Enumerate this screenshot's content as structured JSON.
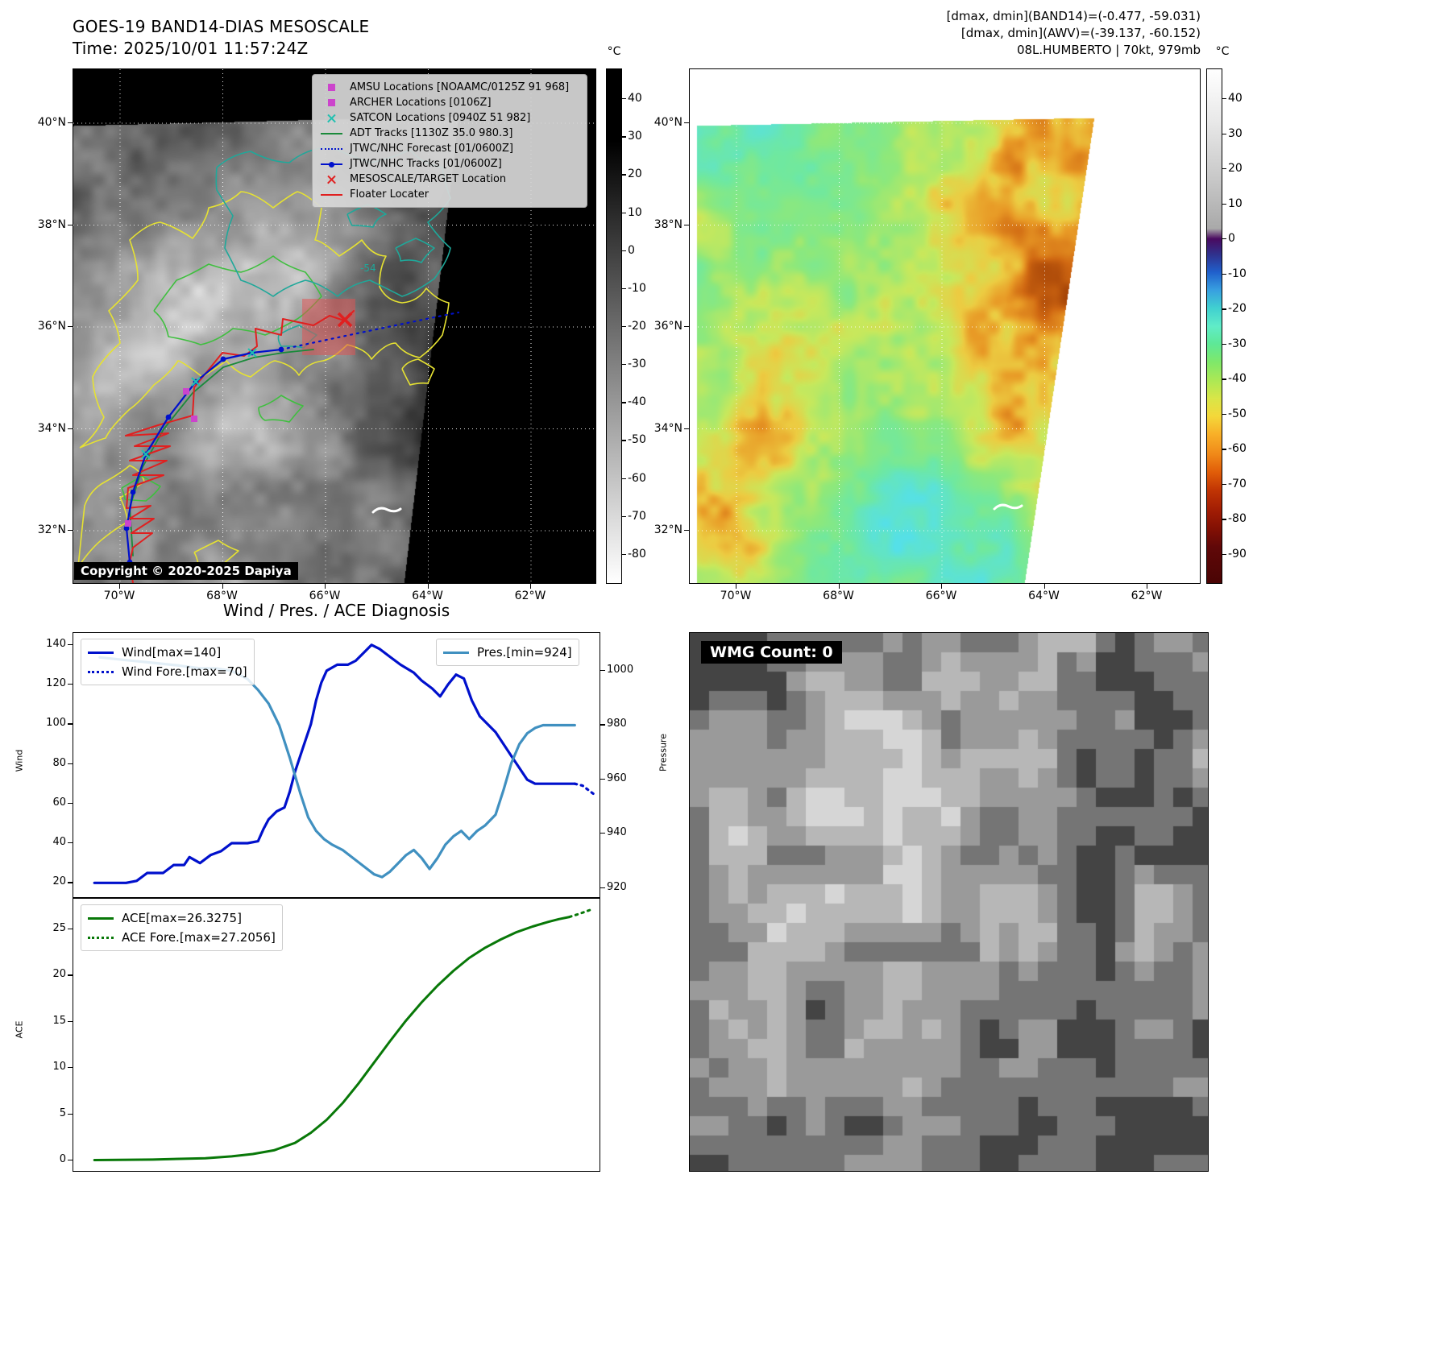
{
  "colors": {
    "wind": "#0010cc",
    "pressure": "#4090c0",
    "ace": "#087808",
    "track_red": "#e02020",
    "track_blue": "#0010cc",
    "track_green": "#1a8a3a",
    "contour_yellow": "#e6e232",
    "contour_green": "#3fbf3f",
    "contour_teal": "#1fa89a",
    "marker_magenta": "#cc44cc"
  },
  "band14_panel": {
    "title_line1": "GOES-19 BAND14-DIAS MESOSCALE",
    "title_line2": "Time: 2025/10/01 11:57:24Z",
    "copyright": "Copyright © 2020-2025 Dapiya",
    "contour_label": "-54",
    "colorbar_unit": "°C",
    "colorbar_ticks": [
      40,
      30,
      20,
      10,
      0,
      -10,
      -20,
      -30,
      -40,
      -50,
      -60,
      -70,
      -80
    ],
    "lat_ticks": [
      "40°N",
      "38°N",
      "36°N",
      "34°N",
      "32°N"
    ],
    "lon_ticks": [
      "70°W",
      "68°W",
      "66°W",
      "64°W",
      "62°W"
    ],
    "legend_items": [
      {
        "label": "AMSU Locations [NOAAMC/0125Z 91 968]",
        "marker": "magenta-square"
      },
      {
        "label": "ARCHER Locations [0106Z]",
        "marker": "magenta-square"
      },
      {
        "label": "SATCON Locations [0940Z 51 982]",
        "marker": "teal-x"
      },
      {
        "label": "ADT Tracks [1130Z 35.0 980.3]",
        "marker": "green-line"
      },
      {
        "label": "JTWC/NHC Forecast [01/0600Z]",
        "marker": "blue-dotted"
      },
      {
        "label": "JTWC/NHC Tracks [01/0600Z]",
        "marker": "blue-line-dot"
      },
      {
        "label": "MESOSCALE/TARGET Location",
        "marker": "red-x"
      },
      {
        "label": "Floater Locater",
        "marker": "red-line"
      }
    ]
  },
  "awv_panel": {
    "header_line1": "[dmax, dmin](BAND14)=(-0.477, -59.031)",
    "header_line2": "[dmax, dmin](AWV)=(-39.137, -60.152)",
    "header_line3": "08L.HUMBERTO | 70kt, 979mb",
    "colorbar_unit": "°C",
    "colorbar_ticks": [
      40,
      30,
      20,
      10,
      0,
      -10,
      -20,
      -30,
      -40,
      -50,
      -60,
      -70,
      -80,
      -90
    ],
    "lat_ticks": [
      "40°N",
      "38°N",
      "36°N",
      "34°N",
      "32°N"
    ],
    "lon_ticks": [
      "70°W",
      "68°W",
      "66°W",
      "64°W",
      "62°W"
    ]
  },
  "wmg_panel": {
    "count_label": "WMG Count: 0"
  },
  "chart_data": [
    {
      "type": "line",
      "title": "Wind / Pres. / ACE Diagnosis",
      "ylabel_left": "Wind",
      "ylabel_right": "Pressure",
      "ylim_left": [
        12,
        146
      ],
      "yticks_left": [
        20,
        40,
        60,
        80,
        100,
        120,
        140
      ],
      "ylim_right": [
        916,
        1014
      ],
      "yticks_right": [
        920,
        940,
        960,
        980,
        1000
      ],
      "grid": false,
      "legend_position": "upper-left and upper-right",
      "series": [
        {
          "name": "Wind[max=140]",
          "style": "solid",
          "color": "#0010cc",
          "axis": "left",
          "width": 3.2,
          "points": [
            [
              0.04,
              20
            ],
            [
              0.1,
              20
            ],
            [
              0.12,
              21
            ],
            [
              0.14,
              25
            ],
            [
              0.17,
              25
            ],
            [
              0.19,
              29
            ],
            [
              0.21,
              29
            ],
            [
              0.22,
              33
            ],
            [
              0.24,
              30
            ],
            [
              0.26,
              34
            ],
            [
              0.28,
              36
            ],
            [
              0.3,
              40
            ],
            [
              0.33,
              40
            ],
            [
              0.35,
              41
            ],
            [
              0.36,
              47
            ],
            [
              0.37,
              52
            ],
            [
              0.385,
              56
            ],
            [
              0.4,
              58
            ],
            [
              0.41,
              66
            ],
            [
              0.42,
              76
            ],
            [
              0.435,
              88
            ],
            [
              0.45,
              100
            ],
            [
              0.46,
              112
            ],
            [
              0.47,
              121
            ],
            [
              0.48,
              127
            ],
            [
              0.5,
              130
            ],
            [
              0.52,
              130
            ],
            [
              0.535,
              132
            ],
            [
              0.55,
              136
            ],
            [
              0.565,
              140
            ],
            [
              0.58,
              138
            ],
            [
              0.6,
              134
            ],
            [
              0.62,
              130
            ],
            [
              0.645,
              126
            ],
            [
              0.66,
              122
            ],
            [
              0.68,
              118
            ],
            [
              0.695,
              114
            ],
            [
              0.71,
              120
            ],
            [
              0.725,
              125
            ],
            [
              0.74,
              123
            ],
            [
              0.755,
              112
            ],
            [
              0.77,
              104
            ],
            [
              0.785,
              100
            ],
            [
              0.8,
              96
            ],
            [
              0.815,
              90
            ],
            [
              0.83,
              84
            ],
            [
              0.845,
              78
            ],
            [
              0.86,
              72
            ],
            [
              0.875,
              70
            ],
            [
              0.9,
              70
            ],
            [
              0.93,
              70
            ],
            [
              0.95,
              70
            ]
          ]
        },
        {
          "name": "Wind Fore.[max=70]",
          "style": "dotted",
          "color": "#0010cc",
          "axis": "left",
          "width": 3.2,
          "points": [
            [
              0.95,
              70
            ],
            [
              0.965,
              69
            ],
            [
              0.975,
              67
            ],
            [
              0.985,
              65
            ]
          ]
        },
        {
          "name": "Pres.[min=924]",
          "style": "solid",
          "color": "#4090c0",
          "axis": "right",
          "width": 3.2,
          "points": [
            [
              0.05,
              1005
            ],
            [
              0.1,
              1004
            ],
            [
              0.15,
              1003
            ],
            [
              0.2,
              1002
            ],
            [
              0.24,
              1001
            ],
            [
              0.27,
              1001
            ],
            [
              0.3,
              1000
            ],
            [
              0.33,
              997
            ],
            [
              0.35,
              993
            ],
            [
              0.37,
              988
            ],
            [
              0.39,
              980
            ],
            [
              0.41,
              968
            ],
            [
              0.43,
              955
            ],
            [
              0.445,
              946
            ],
            [
              0.46,
              941
            ],
            [
              0.475,
              938
            ],
            [
              0.49,
              936
            ],
            [
              0.51,
              934
            ],
            [
              0.53,
              931
            ],
            [
              0.55,
              928
            ],
            [
              0.57,
              925
            ],
            [
              0.585,
              924
            ],
            [
              0.6,
              926
            ],
            [
              0.615,
              929
            ],
            [
              0.63,
              932
            ],
            [
              0.645,
              934
            ],
            [
              0.66,
              931
            ],
            [
              0.675,
              927
            ],
            [
              0.69,
              931
            ],
            [
              0.705,
              936
            ],
            [
              0.72,
              939
            ],
            [
              0.735,
              941
            ],
            [
              0.75,
              938
            ],
            [
              0.765,
              941
            ],
            [
              0.78,
              943
            ],
            [
              0.8,
              947
            ],
            [
              0.815,
              956
            ],
            [
              0.83,
              966
            ],
            [
              0.845,
              973
            ],
            [
              0.86,
              977
            ],
            [
              0.875,
              979
            ],
            [
              0.89,
              980
            ],
            [
              0.92,
              980
            ],
            [
              0.95,
              980
            ]
          ]
        }
      ]
    },
    {
      "type": "line",
      "ylabel_left": "ACE",
      "ylim_left": [
        -1.3,
        28.3
      ],
      "yticks_left": [
        0,
        5,
        10,
        15,
        20,
        25
      ],
      "grid": false,
      "legend_position": "upper-left",
      "series": [
        {
          "name": "ACE[max=26.3275]",
          "style": "solid",
          "color": "#087808",
          "axis": "left",
          "width": 3,
          "points": [
            [
              0.04,
              0.05
            ],
            [
              0.15,
              0.1
            ],
            [
              0.25,
              0.25
            ],
            [
              0.3,
              0.45
            ],
            [
              0.34,
              0.7
            ],
            [
              0.38,
              1.1
            ],
            [
              0.42,
              1.9
            ],
            [
              0.45,
              3.0
            ],
            [
              0.48,
              4.4
            ],
            [
              0.51,
              6.2
            ],
            [
              0.54,
              8.3
            ],
            [
              0.57,
              10.6
            ],
            [
              0.6,
              12.9
            ],
            [
              0.63,
              15.1
            ],
            [
              0.66,
              17.1
            ],
            [
              0.69,
              18.9
            ],
            [
              0.72,
              20.5
            ],
            [
              0.75,
              21.9
            ],
            [
              0.78,
              23.0
            ],
            [
              0.81,
              23.9
            ],
            [
              0.84,
              24.7
            ],
            [
              0.87,
              25.3
            ],
            [
              0.9,
              25.8
            ],
            [
              0.92,
              26.1
            ],
            [
              0.94,
              26.33
            ]
          ]
        },
        {
          "name": "ACE Fore.[max=27.2056]",
          "style": "dotted",
          "color": "#087808",
          "axis": "left",
          "width": 3,
          "points": [
            [
              0.94,
              26.33
            ],
            [
              0.96,
              26.7
            ],
            [
              0.975,
              27.0
            ],
            [
              0.985,
              27.2
            ]
          ]
        }
      ]
    }
  ]
}
